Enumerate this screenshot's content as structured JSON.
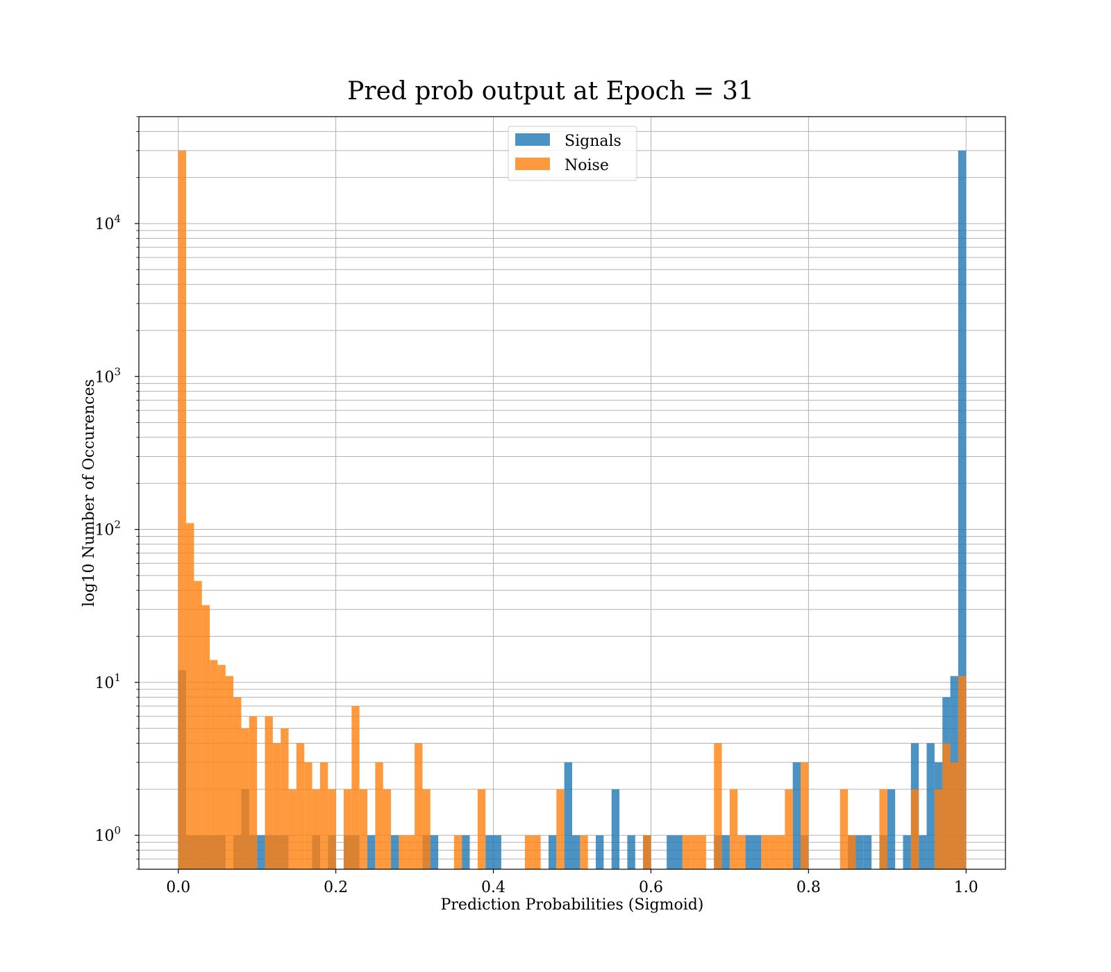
{
  "colors": {
    "signals": "#1f77b4",
    "noise": "#ff7f0e",
    "grid": "#b0b0b0"
  },
  "chart_data": {
    "type": "bar",
    "title": "Pred prob output at Epoch = 31",
    "xlabel": "Prediction Probabilities (Sigmoid)",
    "ylabel": "log10 Number of Occurences",
    "xlim": [
      -0.05,
      1.05
    ],
    "ylim": [
      0.6,
      50000
    ],
    "yscale": "log",
    "grid": true,
    "legend_position": "upper-center",
    "bin_width": 0.01,
    "alpha": 0.8,
    "x_ticks": [
      0.0,
      0.2,
      0.4,
      0.6,
      0.8,
      1.0
    ],
    "x_tick_labels": [
      "0.0",
      "0.2",
      "0.4",
      "0.6",
      "0.8",
      "1.0"
    ],
    "y_ticks": [
      1,
      10,
      100,
      1000,
      10000
    ],
    "y_tick_labels": [
      {
        "base": "10",
        "exp": "0"
      },
      {
        "base": "10",
        "exp": "1"
      },
      {
        "base": "10",
        "exp": "2"
      },
      {
        "base": "10",
        "exp": "3"
      },
      {
        "base": "10",
        "exp": "4"
      }
    ],
    "series": [
      {
        "name": "Signals",
        "bins": [
          {
            "x0": 0.0,
            "count": 12
          },
          {
            "x0": 0.01,
            "count": 1
          },
          {
            "x0": 0.02,
            "count": 1
          },
          {
            "x0": 0.03,
            "count": 1
          },
          {
            "x0": 0.04,
            "count": 1
          },
          {
            "x0": 0.05,
            "count": 1
          },
          {
            "x0": 0.07,
            "count": 1
          },
          {
            "x0": 0.08,
            "count": 2
          },
          {
            "x0": 0.09,
            "count": 1
          },
          {
            "x0": 0.1,
            "count": 1
          },
          {
            "x0": 0.11,
            "count": 1
          },
          {
            "x0": 0.12,
            "count": 1
          },
          {
            "x0": 0.13,
            "count": 1
          },
          {
            "x0": 0.17,
            "count": 1
          },
          {
            "x0": 0.19,
            "count": 1
          },
          {
            "x0": 0.21,
            "count": 1
          },
          {
            "x0": 0.22,
            "count": 1
          },
          {
            "x0": 0.24,
            "count": 1
          },
          {
            "x0": 0.27,
            "count": 1
          },
          {
            "x0": 0.31,
            "count": 1
          },
          {
            "x0": 0.32,
            "count": 1
          },
          {
            "x0": 0.36,
            "count": 1
          },
          {
            "x0": 0.39,
            "count": 1
          },
          {
            "x0": 0.4,
            "count": 1
          },
          {
            "x0": 0.47,
            "count": 1
          },
          {
            "x0": 0.49,
            "count": 3
          },
          {
            "x0": 0.5,
            "count": 1
          },
          {
            "x0": 0.53,
            "count": 1
          },
          {
            "x0": 0.55,
            "count": 2
          },
          {
            "x0": 0.57,
            "count": 1
          },
          {
            "x0": 0.59,
            "count": 1
          },
          {
            "x0": 0.62,
            "count": 1
          },
          {
            "x0": 0.63,
            "count": 1
          },
          {
            "x0": 0.68,
            "count": 1
          },
          {
            "x0": 0.69,
            "count": 1
          },
          {
            "x0": 0.72,
            "count": 1
          },
          {
            "x0": 0.73,
            "count": 1
          },
          {
            "x0": 0.78,
            "count": 3
          },
          {
            "x0": 0.79,
            "count": 1
          },
          {
            "x0": 0.85,
            "count": 1
          },
          {
            "x0": 0.86,
            "count": 1
          },
          {
            "x0": 0.87,
            "count": 1
          },
          {
            "x0": 0.89,
            "count": 1
          },
          {
            "x0": 0.9,
            "count": 2
          },
          {
            "x0": 0.92,
            "count": 1
          },
          {
            "x0": 0.93,
            "count": 4
          },
          {
            "x0": 0.94,
            "count": 1
          },
          {
            "x0": 0.95,
            "count": 4
          },
          {
            "x0": 0.96,
            "count": 3
          },
          {
            "x0": 0.97,
            "count": 8
          },
          {
            "x0": 0.98,
            "count": 11
          },
          {
            "x0": 0.99,
            "count": 30000
          }
        ]
      },
      {
        "name": "Noise",
        "bins": [
          {
            "x0": 0.0,
            "count": 30000
          },
          {
            "x0": 0.01,
            "count": 110
          },
          {
            "x0": 0.02,
            "count": 46
          },
          {
            "x0": 0.03,
            "count": 32
          },
          {
            "x0": 0.04,
            "count": 14
          },
          {
            "x0": 0.05,
            "count": 13
          },
          {
            "x0": 0.06,
            "count": 11
          },
          {
            "x0": 0.07,
            "count": 8
          },
          {
            "x0": 0.08,
            "count": 5
          },
          {
            "x0": 0.09,
            "count": 6
          },
          {
            "x0": 0.11,
            "count": 6
          },
          {
            "x0": 0.12,
            "count": 4
          },
          {
            "x0": 0.13,
            "count": 5
          },
          {
            "x0": 0.14,
            "count": 2
          },
          {
            "x0": 0.15,
            "count": 4
          },
          {
            "x0": 0.16,
            "count": 3
          },
          {
            "x0": 0.17,
            "count": 2
          },
          {
            "x0": 0.18,
            "count": 3
          },
          {
            "x0": 0.19,
            "count": 2
          },
          {
            "x0": 0.21,
            "count": 2
          },
          {
            "x0": 0.22,
            "count": 7
          },
          {
            "x0": 0.23,
            "count": 2
          },
          {
            "x0": 0.25,
            "count": 3
          },
          {
            "x0": 0.26,
            "count": 2
          },
          {
            "x0": 0.28,
            "count": 1
          },
          {
            "x0": 0.29,
            "count": 1
          },
          {
            "x0": 0.3,
            "count": 4
          },
          {
            "x0": 0.31,
            "count": 2
          },
          {
            "x0": 0.35,
            "count": 1
          },
          {
            "x0": 0.38,
            "count": 2
          },
          {
            "x0": 0.44,
            "count": 1
          },
          {
            "x0": 0.45,
            "count": 1
          },
          {
            "x0": 0.48,
            "count": 2
          },
          {
            "x0": 0.51,
            "count": 1
          },
          {
            "x0": 0.59,
            "count": 1
          },
          {
            "x0": 0.64,
            "count": 1
          },
          {
            "x0": 0.65,
            "count": 1
          },
          {
            "x0": 0.66,
            "count": 1
          },
          {
            "x0": 0.68,
            "count": 4
          },
          {
            "x0": 0.7,
            "count": 2
          },
          {
            "x0": 0.71,
            "count": 1
          },
          {
            "x0": 0.74,
            "count": 1
          },
          {
            "x0": 0.75,
            "count": 1
          },
          {
            "x0": 0.76,
            "count": 1
          },
          {
            "x0": 0.77,
            "count": 2
          },
          {
            "x0": 0.79,
            "count": 3
          },
          {
            "x0": 0.84,
            "count": 2
          },
          {
            "x0": 0.85,
            "count": 1
          },
          {
            "x0": 0.89,
            "count": 2
          },
          {
            "x0": 0.93,
            "count": 2
          },
          {
            "x0": 0.96,
            "count": 2
          },
          {
            "x0": 0.97,
            "count": 4
          },
          {
            "x0": 0.98,
            "count": 3
          },
          {
            "x0": 0.99,
            "count": 11
          }
        ]
      }
    ]
  }
}
